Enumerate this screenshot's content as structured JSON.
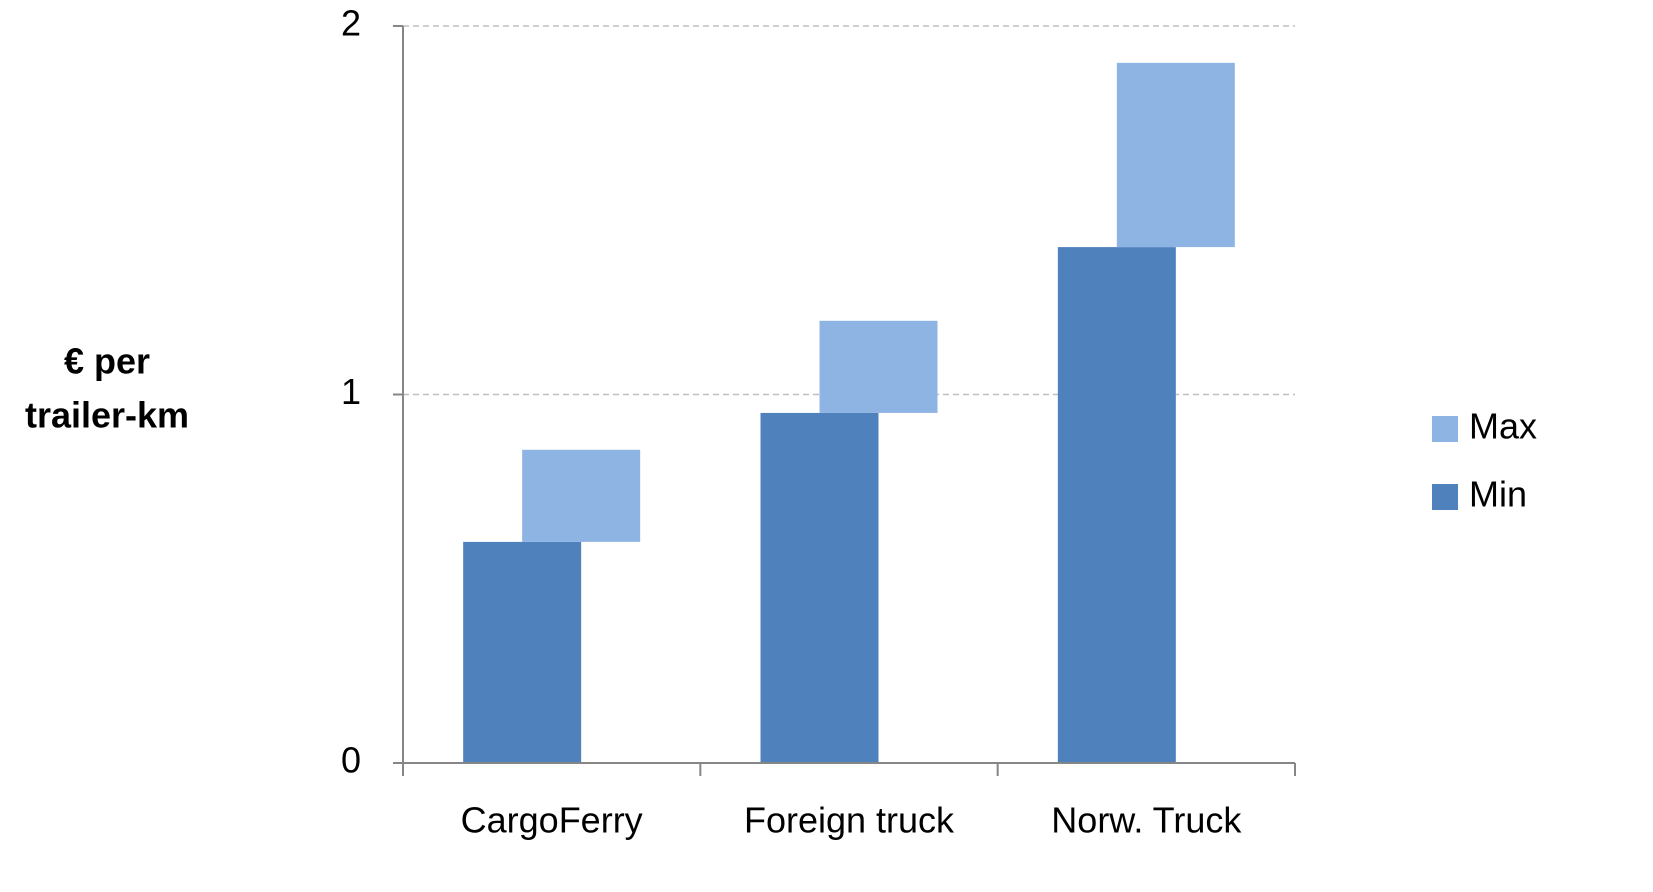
{
  "chart_data": {
    "type": "floating_bar",
    "ylabel": [
      "€ per",
      "trailer-km"
    ],
    "categories": [
      "CargoFerry",
      "Foreign truck",
      "Norw. Truck"
    ],
    "series": [
      {
        "name": "Min",
        "color": "#4f81bd",
        "values": [
          0.6,
          0.95,
          1.4
        ]
      },
      {
        "name": "Max",
        "color": "#8eb4e3",
        "values": [
          0.85,
          1.2,
          1.9
        ]
      }
    ],
    "ylim": [
      0,
      2
    ],
    "yticks": [
      0,
      1,
      2
    ],
    "grid": true,
    "legend": "right"
  }
}
